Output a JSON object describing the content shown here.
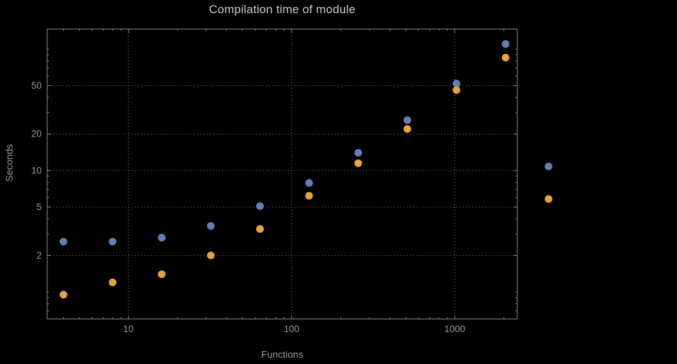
{
  "page": {
    "background": "#000000"
  },
  "chart_data": {
    "type": "scatter",
    "title": "Compilation time of module",
    "xlabel": "Functions",
    "ylabel": "Seconds",
    "x_scale": "log",
    "y_scale": "log",
    "grid": "dotted-major",
    "xlim": [
      3.18,
      2416
    ],
    "ylim": [
      0.6,
      146
    ],
    "x": [
      4,
      8,
      16,
      32,
      64,
      128,
      256,
      512,
      1024,
      2048
    ],
    "series": [
      {
        "name": "series-blue",
        "color": "#5E81B5",
        "values": [
          2.6,
          2.6,
          2.8,
          3.5,
          5.1,
          7.9,
          14,
          26,
          52,
          110
        ]
      },
      {
        "name": "series-orange",
        "color": "#E8A33B",
        "values": [
          0.95,
          1.2,
          1.4,
          2.0,
          3.3,
          6.2,
          11.5,
          22,
          46,
          85
        ]
      }
    ],
    "x_ticks_labeled": [
      10,
      100,
      1000
    ],
    "y_ticks_labeled": [
      2,
      5,
      10,
      20,
      50
    ],
    "legend_position": "right-outside",
    "legend_markers": [
      {
        "color": "#5E81B5"
      },
      {
        "color": "#E8A33B"
      }
    ],
    "colors": {
      "background": "#000000",
      "frame": "#8f8f8f",
      "grid": "#646464",
      "tick_text": "#9a9a9a",
      "title_text": "#c9c9cb"
    }
  }
}
